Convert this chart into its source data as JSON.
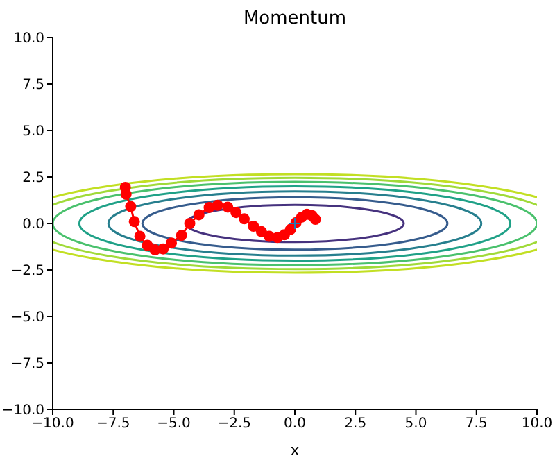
{
  "chart_data": {
    "type": "line",
    "title": "Momentum",
    "xlabel": "x",
    "xlim": [
      -10,
      10
    ],
    "ylim": [
      -10,
      10
    ],
    "xticks": [
      {
        "value": -10,
        "label": "−10.0"
      },
      {
        "value": -7.5,
        "label": "−7.5"
      },
      {
        "value": -5,
        "label": "−5.0"
      },
      {
        "value": -2.5,
        "label": "−2.5"
      },
      {
        "value": 0,
        "label": "0.0"
      },
      {
        "value": 2.5,
        "label": "2.5"
      },
      {
        "value": 5,
        "label": "5.0"
      },
      {
        "value": 7.5,
        "label": "7.5"
      },
      {
        "value": 10,
        "label": "10.0"
      }
    ],
    "yticks": [
      {
        "value": -10,
        "label": "−10.0"
      },
      {
        "value": -7.5,
        "label": "−7.5"
      },
      {
        "value": -5,
        "label": "−5.0"
      },
      {
        "value": -2.5,
        "label": "−2.5"
      },
      {
        "value": 0,
        "label": "0.0"
      },
      {
        "value": 2.5,
        "label": "2.5"
      },
      {
        "value": 5,
        "label": "5.0"
      },
      {
        "value": 7.5,
        "label": "7.5"
      },
      {
        "value": 10,
        "label": "10.0"
      }
    ],
    "line_style": "solid",
    "grid": false,
    "legend": false,
    "series": [
      {
        "color": "#ff0000",
        "marker": "circle",
        "x": [
          -7.0,
          -6.97,
          -6.78,
          -6.63,
          -6.4,
          -6.09,
          -5.77,
          -5.44,
          -5.1,
          -4.68,
          -4.34,
          -3.96,
          -3.54,
          -3.19,
          -2.77,
          -2.43,
          -2.09,
          -1.71,
          -1.38,
          -1.06,
          -0.72,
          -0.43,
          -0.18,
          0.05,
          0.28,
          0.5,
          0.71,
          0.85
        ],
        "values": [
          1.94,
          1.57,
          0.91,
          0.1,
          -0.69,
          -1.18,
          -1.42,
          -1.37,
          -1.05,
          -0.64,
          0,
          0.47,
          0.86,
          0.98,
          0.88,
          0.59,
          0.25,
          -0.15,
          -0.44,
          -0.69,
          -0.76,
          -0.61,
          -0.32,
          0.05,
          0.34,
          0.49,
          0.42,
          0.22
        ]
      },
      {
        "type": "scatter",
        "color": "#1f77b4",
        "marker": "cross",
        "x": [
          0
        ],
        "values": [
          0
        ]
      }
    ]
  }
}
